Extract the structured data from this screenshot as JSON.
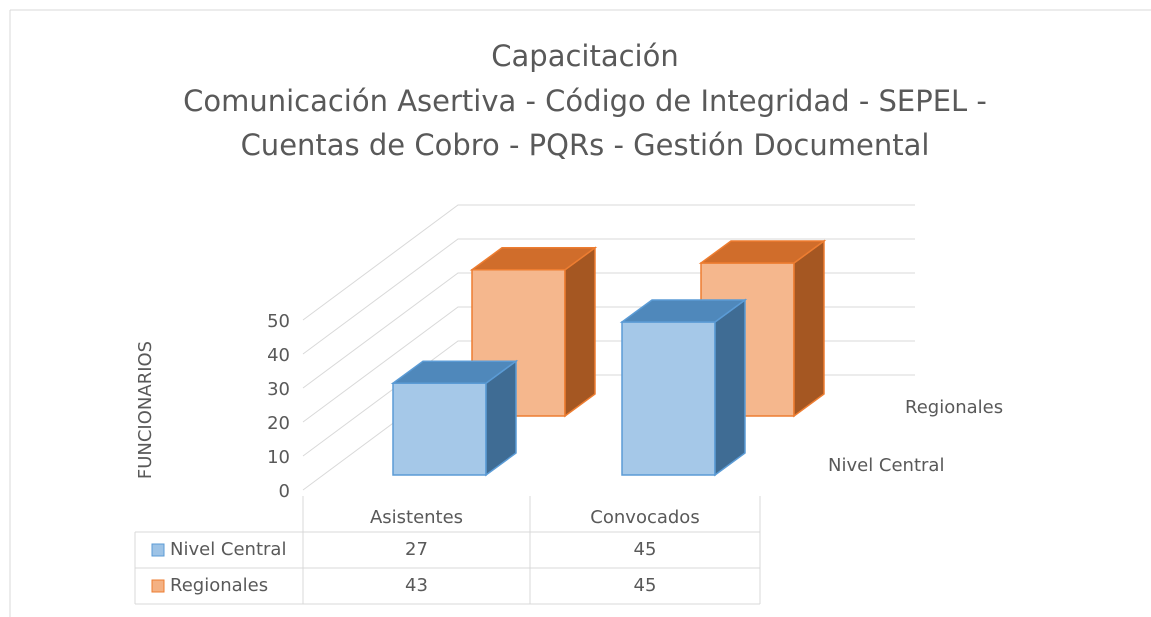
{
  "chart_data": {
    "type": "bar3d",
    "title": "Capacitación",
    "subtitle": [
      "Comunicación Asertiva - Código de Integridad - SEPEL -",
      "Cuentas de Cobro - PQRs - Gestión Documental"
    ],
    "y_label": "FUNCIONARIOS",
    "categories": [
      "Asistentes",
      "Convocados"
    ],
    "series": [
      {
        "name": "Nivel Central",
        "color": "#5b9bd5",
        "values": [
          27,
          45
        ]
      },
      {
        "name": "Regionales",
        "color": "#ed7d31",
        "values": [
          43,
          45
        ]
      }
    ],
    "ylim": [
      0,
      50
    ],
    "yticks": [
      0,
      10,
      20,
      30,
      40,
      50
    ],
    "grid": true,
    "data_table": true
  }
}
